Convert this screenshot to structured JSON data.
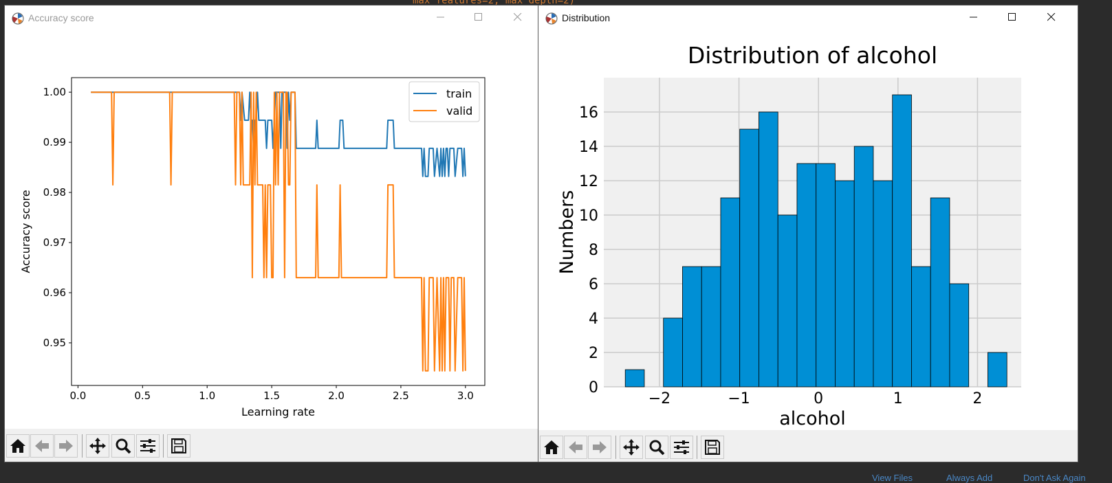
{
  "background": {
    "code_snippet": "max_features=2, max_depth=2)",
    "bottom_links": [
      "View Files",
      "Always Add",
      "Don't Ask Again"
    ]
  },
  "windows": [
    {
      "title": "Accuracy score",
      "controls": [
        "minimize-icon",
        "maximize-icon",
        "close-icon"
      ],
      "toolbar": [
        "home-icon",
        "back-arrow-icon",
        "forward-arrow-icon",
        "pan-icon",
        "zoom-icon",
        "configure-subplots-icon",
        "save-icon"
      ]
    },
    {
      "title": "Distribution",
      "controls": [
        "minimize-icon",
        "maximize-icon",
        "close-icon"
      ],
      "toolbar": [
        "home-icon",
        "back-arrow-icon",
        "forward-arrow-icon",
        "pan-icon",
        "zoom-icon",
        "configure-subplots-icon",
        "save-icon"
      ]
    }
  ],
  "chart_data": [
    {
      "type": "line",
      "title": "",
      "xlabel": "Learning rate",
      "ylabel": "Accuracy score",
      "xlim": [
        -0.05,
        3.15
      ],
      "ylim": [
        0.9415,
        1.0029
      ],
      "xticks": [
        "0.0",
        "0.5",
        "1.0",
        "1.5",
        "2.0",
        "2.5",
        "3.0"
      ],
      "yticks": [
        "0.95",
        "0.96",
        "0.97",
        "0.98",
        "0.99",
        "1.00"
      ],
      "xtick_values": [
        0,
        0.5,
        1.0,
        1.5,
        2.0,
        2.5,
        3.0
      ],
      "ytick_values": [
        0.95,
        0.96,
        0.97,
        0.98,
        0.99,
        1.0
      ],
      "grid": false,
      "legend_position": "top-right",
      "series": [
        {
          "name": "train",
          "color": "#1f77b4",
          "points": [
            [
              0.1,
              1.0
            ],
            [
              1.25,
              1.0
            ],
            [
              1.26,
              0.9944
            ],
            [
              1.27,
              1.0
            ],
            [
              1.29,
              0.9944
            ],
            [
              1.32,
              0.9944
            ],
            [
              1.33,
              1.0
            ],
            [
              1.34,
              0.9944
            ],
            [
              1.35,
              0.9944
            ],
            [
              1.36,
              0.9888
            ],
            [
              1.37,
              0.9944
            ],
            [
              1.38,
              0.9944
            ],
            [
              1.39,
              1.0
            ],
            [
              1.4,
              0.9944
            ],
            [
              1.45,
              0.9944
            ],
            [
              1.46,
              0.9888
            ],
            [
              1.47,
              0.9944
            ],
            [
              1.5,
              0.9944
            ],
            [
              1.51,
              0.9888
            ],
            [
              1.52,
              0.9944
            ],
            [
              1.53,
              1.0
            ],
            [
              1.56,
              1.0
            ],
            [
              1.57,
              0.9888
            ],
            [
              1.58,
              1.0
            ],
            [
              1.61,
              1.0
            ],
            [
              1.62,
              0.9888
            ],
            [
              1.63,
              1.0
            ],
            [
              1.64,
              0.9944
            ],
            [
              1.65,
              1.0
            ],
            [
              1.68,
              1.0
            ],
            [
              1.69,
              0.9888
            ],
            [
              1.84,
              0.9888
            ],
            [
              1.85,
              0.9944
            ],
            [
              1.86,
              0.9888
            ],
            [
              2.02,
              0.9888
            ],
            [
              2.03,
              0.9944
            ],
            [
              2.05,
              0.9944
            ],
            [
              2.06,
              0.9888
            ],
            [
              2.39,
              0.9888
            ],
            [
              2.4,
              0.9944
            ],
            [
              2.44,
              0.9944
            ],
            [
              2.45,
              0.9888
            ],
            [
              2.66,
              0.9888
            ],
            [
              2.67,
              0.9832
            ],
            [
              2.68,
              0.9888
            ],
            [
              2.69,
              0.9832
            ],
            [
              2.71,
              0.9832
            ],
            [
              2.72,
              0.9888
            ],
            [
              2.75,
              0.9888
            ],
            [
              2.76,
              0.9832
            ],
            [
              2.78,
              0.9888
            ],
            [
              2.8,
              0.9832
            ],
            [
              2.81,
              0.9888
            ],
            [
              2.82,
              0.9832
            ],
            [
              2.83,
              0.9888
            ],
            [
              2.84,
              0.9832
            ],
            [
              2.85,
              0.9888
            ],
            [
              2.86,
              0.9888
            ],
            [
              2.87,
              0.9832
            ],
            [
              2.88,
              0.9888
            ],
            [
              2.91,
              0.9888
            ],
            [
              2.92,
              0.9832
            ],
            [
              2.94,
              0.9888
            ],
            [
              2.97,
              0.9888
            ],
            [
              2.98,
              0.9832
            ],
            [
              2.99,
              0.9888
            ],
            [
              3.0,
              0.9832
            ]
          ]
        },
        {
          "name": "valid",
          "color": "#ff7f0e",
          "points": [
            [
              0.1,
              1.0
            ],
            [
              0.26,
              1.0
            ],
            [
              0.27,
              0.9815
            ],
            [
              0.28,
              1.0
            ],
            [
              0.71,
              1.0
            ],
            [
              0.72,
              0.9815
            ],
            [
              0.73,
              1.0
            ],
            [
              1.21,
              1.0
            ],
            [
              1.22,
              0.9815
            ],
            [
              1.23,
              1.0
            ],
            [
              1.25,
              1.0
            ],
            [
              1.26,
              0.9815
            ],
            [
              1.27,
              1.0
            ],
            [
              1.28,
              0.9815
            ],
            [
              1.33,
              0.9815
            ],
            [
              1.34,
              1.0
            ],
            [
              1.35,
              0.963
            ],
            [
              1.36,
              1.0
            ],
            [
              1.37,
              0.9815
            ],
            [
              1.38,
              1.0
            ],
            [
              1.39,
              0.9815
            ],
            [
              1.43,
              0.9815
            ],
            [
              1.44,
              0.963
            ],
            [
              1.45,
              0.9815
            ],
            [
              1.46,
              0.963
            ],
            [
              1.47,
              0.9815
            ],
            [
              1.49,
              0.9815
            ],
            [
              1.5,
              0.963
            ],
            [
              1.51,
              0.963
            ],
            [
              1.52,
              1.0
            ],
            [
              1.53,
              0.9815
            ],
            [
              1.54,
              1.0
            ],
            [
              1.55,
              0.9815
            ],
            [
              1.56,
              1.0
            ],
            [
              1.59,
              1.0
            ],
            [
              1.6,
              0.963
            ],
            [
              1.61,
              1.0
            ],
            [
              1.62,
              1.0
            ],
            [
              1.63,
              0.9815
            ],
            [
              1.64,
              0.9815
            ],
            [
              1.65,
              1.0
            ],
            [
              1.68,
              1.0
            ],
            [
              1.69,
              0.963
            ],
            [
              1.84,
              0.963
            ],
            [
              1.85,
              0.9815
            ],
            [
              1.86,
              0.963
            ],
            [
              2.02,
              0.963
            ],
            [
              2.03,
              0.9815
            ],
            [
              2.04,
              0.963
            ],
            [
              2.39,
              0.963
            ],
            [
              2.4,
              0.9815
            ],
            [
              2.44,
              0.9815
            ],
            [
              2.45,
              0.963
            ],
            [
              2.66,
              0.963
            ],
            [
              2.67,
              0.9444
            ],
            [
              2.68,
              0.963
            ],
            [
              2.69,
              0.9444
            ],
            [
              2.71,
              0.9444
            ],
            [
              2.72,
              0.963
            ],
            [
              2.75,
              0.963
            ],
            [
              2.76,
              0.9444
            ],
            [
              2.78,
              0.963
            ],
            [
              2.8,
              0.9444
            ],
            [
              2.81,
              0.963
            ],
            [
              2.82,
              0.9444
            ],
            [
              2.83,
              0.963
            ],
            [
              2.84,
              0.9444
            ],
            [
              2.85,
              0.963
            ],
            [
              2.87,
              0.963
            ],
            [
              2.88,
              0.9444
            ],
            [
              2.89,
              0.963
            ],
            [
              2.91,
              0.963
            ],
            [
              2.92,
              0.9444
            ],
            [
              2.94,
              0.963
            ],
            [
              2.97,
              0.963
            ],
            [
              2.98,
              0.9444
            ],
            [
              2.99,
              0.963
            ],
            [
              3.0,
              0.9444
            ]
          ]
        }
      ]
    },
    {
      "type": "bar",
      "title": "Distribution of alcohol",
      "xlabel": "alcohol",
      "ylabel": "Numbers",
      "style": "histogram",
      "xlim": [
        -2.7,
        2.55
      ],
      "ylim": [
        0,
        18
      ],
      "xticks": [
        "−2",
        "−1",
        "0",
        "1",
        "2"
      ],
      "yticks": [
        "0",
        "2",
        "4",
        "6",
        "8",
        "10",
        "12",
        "14",
        "16"
      ],
      "xtick_values": [
        -2,
        -1,
        0,
        1,
        2
      ],
      "ytick_values": [
        0,
        2,
        4,
        6,
        8,
        10,
        12,
        14,
        16
      ],
      "grid": true,
      "bar_color": "#008fd5",
      "background_color": "#f0f0f0",
      "bin_edges": [
        -2.43,
        -2.19,
        -1.95,
        -1.71,
        -1.47,
        -1.23,
        -0.99,
        -0.75,
        -0.51,
        -0.27,
        -0.03,
        0.21,
        0.45,
        0.69,
        0.93,
        1.17,
        1.41,
        1.65,
        1.89,
        2.13,
        2.37
      ],
      "values": [
        1,
        0,
        4,
        7,
        7,
        11,
        15,
        16,
        10,
        13,
        13,
        12,
        14,
        12,
        17,
        7,
        11,
        6,
        0,
        2
      ]
    }
  ]
}
